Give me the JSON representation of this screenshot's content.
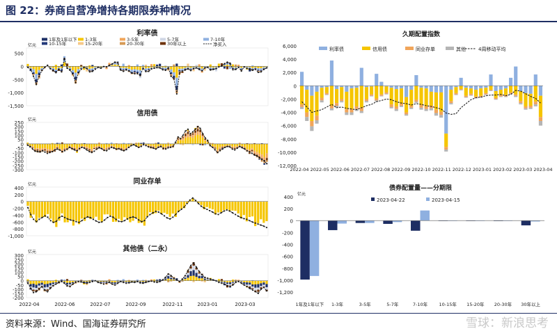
{
  "figure_title": "图 22：券商自营净增持各期限券种情况",
  "source": "资料来源：Wind、国海证券研究所",
  "watermark": "雪球：新浪思考",
  "colors": {
    "b1": "#1e3066",
    "b2": "#f5c500",
    "b3": "#f1a55a",
    "b4": "#cfd6e4",
    "b5": "#8fb0e0",
    "b6": "#233a7a",
    "b7": "#f6c98a",
    "b8": "#d69a55",
    "b9": "#6e3208",
    "dark": "#1e2e63"
  },
  "chart_data": [
    {
      "type": "bar",
      "title": "利率债",
      "unit": "亿元",
      "legend": [
        "1年及1年以下",
        "1-3年",
        "3-5年",
        "5-7年",
        "7-10年",
        "10-15年",
        "15-20年",
        "20-30年",
        "30年以上",
        "净买入"
      ],
      "y_ticks": [
        -1500,
        -1000,
        -500,
        0,
        500
      ],
      "ylim": [
        -1500,
        700
      ],
      "net": [
        -40,
        -120,
        -380,
        -690,
        -380,
        -160,
        -40,
        40,
        -90,
        -160,
        -240,
        -110,
        -210,
        300,
        -70,
        -150,
        -290,
        -620,
        -240,
        -110,
        -40,
        -80,
        -210,
        -190,
        -110,
        -40,
        -70,
        -10,
        -20,
        40,
        90,
        160,
        150,
        -140,
        -190,
        -140,
        -180,
        -250,
        -280,
        -280,
        -350,
        -80,
        -200,
        -190,
        -100,
        -70,
        -50,
        -60,
        -130,
        -150,
        -60,
        -380,
        -480,
        -1050,
        -250,
        -180,
        -140,
        -100,
        -160,
        -90,
        -60,
        -120,
        -170,
        -60,
        -40,
        -140,
        -120,
        -90,
        -20,
        10,
        100,
        160,
        120,
        -130,
        -120,
        -40,
        -180,
        -20,
        -80,
        -120,
        -150,
        -110,
        -230,
        -210,
        -120,
        -60
      ]
    },
    {
      "type": "bar",
      "title": "信用债",
      "unit": "亿元",
      "y_ticks": [
        -300,
        -250,
        -200,
        -150,
        -100,
        -50,
        0,
        50,
        100,
        150,
        200,
        250
      ],
      "ylim": [
        -300,
        250
      ],
      "net": [
        -15,
        -30,
        -60,
        -85,
        -90,
        -95,
        -80,
        -95,
        -110,
        -100,
        -90,
        -70,
        -60,
        -70,
        -90,
        -80,
        -60,
        -40,
        -55,
        -70,
        -80,
        -55,
        -40,
        -50,
        -70,
        -90,
        -100,
        -85,
        -60,
        -45,
        -55,
        -75,
        -80,
        -60,
        -40,
        -50,
        -60,
        -55,
        -70,
        -80,
        -65,
        -40,
        -20,
        -10,
        -25,
        -40,
        -30,
        -10,
        -20,
        -35,
        -40,
        -50,
        -60,
        -40,
        -30,
        -50,
        -60,
        -45,
        -40,
        -30,
        20,
        80,
        60,
        100,
        150,
        170,
        120,
        140,
        170,
        200,
        180,
        120,
        70,
        40,
        -20,
        -40,
        -70,
        -100,
        -80,
        -60,
        -40,
        -30,
        -35,
        -60,
        -70,
        -50,
        -30,
        -45,
        -60,
        -80,
        -95,
        -110,
        -130,
        -140,
        -160,
        -180,
        -200,
        -230
      ]
    },
    {
      "type": "bar",
      "title": "同业存单",
      "unit": "亿元",
      "y_ticks": [
        -1000,
        -800,
        -600,
        -400,
        -200,
        0,
        200,
        400
      ],
      "ylim": [
        -1000,
        420
      ],
      "net": [
        -180,
        -380,
        -520,
        -590,
        -520,
        -470,
        -420,
        -460,
        -560,
        -610,
        -580,
        -470,
        -430,
        -470,
        -510,
        -540,
        -560,
        -590,
        -610,
        -560,
        -490,
        -450,
        -470,
        -520,
        -570,
        -610,
        -600,
        -540,
        -470,
        -430,
        -460,
        -520,
        -580,
        -590,
        -560,
        -510,
        -470,
        -450,
        -480,
        -540,
        -590,
        -560,
        -450,
        -380,
        -330,
        -290,
        -310,
        -360,
        -420,
        -480,
        -510,
        -460,
        -380,
        -290,
        -230,
        -160,
        -60,
        40,
        100,
        30,
        -60,
        -140,
        -190,
        -230,
        -270,
        -310,
        -360,
        -380,
        -330,
        -280,
        -250,
        -280,
        -330,
        -380,
        -430,
        -470,
        -500,
        -520,
        -560,
        -600,
        -630,
        -660,
        -690,
        -720,
        -760
      ]
    },
    {
      "type": "bar",
      "title": "其他债（二永）",
      "unit": "亿元",
      "y_ticks": [
        -200,
        -150,
        -100,
        -50,
        0,
        50,
        100,
        150,
        200,
        250,
        300
      ],
      "ylim": [
        -200,
        310
      ],
      "x_ticks": [
        "2022-04",
        "2022-06",
        "2022-07",
        "2022-09",
        "2022-11",
        "2023-01",
        "2023-03"
      ],
      "net": [
        -30,
        -90,
        -140,
        -130,
        -100,
        -70,
        -110,
        -130,
        -90,
        -60,
        -40,
        -20,
        -10,
        -30,
        -60,
        -70,
        -40,
        -20,
        -10,
        -15,
        -25,
        -30,
        -20,
        -10,
        0,
        -20,
        -30,
        -40,
        -30,
        -20,
        -40,
        -50,
        -30,
        -10,
        -20,
        -30,
        -25,
        -15,
        -20,
        -10,
        -25,
        -30,
        -20,
        -10,
        -5,
        -15,
        -20,
        -10,
        10,
        40,
        80,
        60,
        30,
        10,
        -10,
        20,
        60,
        120,
        180,
        210,
        160,
        110,
        70,
        40,
        30,
        20,
        10,
        0,
        -20,
        -30,
        -40,
        -60,
        -70,
        -50,
        -20,
        -10,
        -30,
        -50,
        -70,
        -90,
        -110,
        -130,
        -150,
        -100,
        -80,
        -120
      ]
    },
    {
      "type": "bar",
      "title": "久期配置指数",
      "legend": [
        "利率债",
        "信用债",
        "同业存单",
        "其他",
        "4周移动平均"
      ],
      "y_ticks": [
        -12000,
        -10000,
        -8000,
        -6000,
        -4000,
        -2000,
        0,
        2000,
        4000,
        6000
      ],
      "ylim": [
        -12000,
        6000
      ],
      "x_ticks": [
        "2022-04",
        "2022-05",
        "2022-06",
        "2022-07",
        "2022-08",
        "2022-09",
        "2022-10",
        "2022-11",
        "2022-12",
        "2023-01",
        "2023-02",
        "2023-03",
        "2023-04"
      ],
      "weeks": [
        [
          2100,
          -2800,
          -400,
          -300
        ],
        [
          -600,
          -3400,
          -700,
          -600
        ],
        [
          -1500,
          -3800,
          -800,
          -700
        ],
        [
          -900,
          -3600,
          -700,
          -500
        ],
        [
          -300,
          -1500,
          -400,
          -300
        ],
        [
          -200,
          -900,
          -200,
          -100
        ],
        [
          3800,
          -3000,
          -400,
          -300
        ],
        [
          -500,
          -2100,
          -400,
          -300
        ],
        [
          -200,
          -1800,
          -300,
          -200
        ],
        [
          -900,
          -2600,
          -500,
          -400
        ],
        [
          -400,
          -3100,
          -500,
          -400
        ],
        [
          -300,
          -2800,
          -400,
          -300
        ],
        [
          2700,
          -3300,
          -500,
          -300
        ],
        [
          -200,
          -1800,
          -300,
          -200
        ],
        [
          -100,
          -1200,
          -200,
          -100
        ],
        [
          1800,
          -1900,
          -300,
          -200
        ],
        [
          600,
          -1300,
          -200,
          -100
        ],
        [
          -100,
          -900,
          -200,
          -100
        ],
        [
          -300,
          -2500,
          -400,
          -200
        ],
        [
          -500,
          -2600,
          -400,
          -300
        ],
        [
          -400,
          -2300,
          -300,
          -200
        ],
        [
          -1700,
          -2300,
          -300,
          -200
        ],
        [
          -600,
          -2400,
          -300,
          -200
        ],
        [
          1600,
          -2100,
          -300,
          -200
        ],
        [
          -300,
          -2600,
          -400,
          -300
        ],
        [
          -400,
          -2700,
          -400,
          -300
        ],
        [
          -900,
          -2100,
          -400,
          -300
        ],
        [
          -1000,
          -2600,
          -500,
          -400
        ],
        [
          -1000,
          -2900,
          -500,
          -400
        ],
        [
          -7200,
          -2000,
          -400,
          -300
        ],
        [
          -600,
          -1700,
          -300,
          -200
        ],
        [
          -200,
          -900,
          -200,
          -100
        ],
        [
          1200,
          -500,
          -100,
          -100
        ],
        [
          -300,
          -1200,
          -200,
          -100
        ],
        [
          -400,
          -800,
          -200,
          -100
        ],
        [
          -600,
          -1000,
          -200,
          -100
        ],
        [
          -400,
          -1100,
          -200,
          -100
        ],
        [
          -300,
          -800,
          -200,
          -100
        ],
        [
          1700,
          -600,
          -100,
          -100
        ],
        [
          -800,
          -1000,
          -200,
          -100
        ],
        [
          -600,
          -800,
          -200,
          -100
        ],
        [
          -400,
          -1000,
          -200,
          -100
        ],
        [
          1200,
          -1000,
          -200,
          -100
        ],
        [
          2900,
          -1300,
          -200,
          -200
        ],
        [
          -800,
          -1500,
          -300,
          -200
        ],
        [
          -1100,
          -2000,
          -300,
          -200
        ],
        [
          -1200,
          -1800,
          -300,
          -200
        ],
        [
          1700,
          -2400,
          -400,
          -300
        ],
        [
          -1500,
          -3200,
          -600,
          -700
        ]
      ],
      "ma": [
        -2400,
        -3200,
        -4000,
        -3800,
        -3600,
        -3200,
        -2800,
        -3300,
        -3200,
        -3400,
        -3500,
        -3600,
        -3300,
        -3000,
        -2800,
        -2400,
        -2200,
        -2000,
        -2100,
        -2400,
        -2600,
        -2700,
        -2900,
        -2700,
        -2800,
        -3000,
        -3100,
        -3300,
        -3500,
        -4100,
        -4300,
        -4200,
        -3300,
        -2700,
        -2100,
        -1800,
        -1700,
        -1500,
        -1400,
        -1400,
        -1300,
        -1500,
        -1300,
        -700,
        -800,
        -1200,
        -1600,
        -1900,
        -2600
      ]
    },
    {
      "type": "bar",
      "title": "债券配置量——分期限",
      "unit": "亿元",
      "categories": [
        "1年及1年以下",
        "1-3年",
        "3-5年",
        "5-7年",
        "7-10年",
        "10-15年",
        "15-20年",
        "20-30年",
        "30年以上"
      ],
      "series": [
        {
          "name": "2023-04-22",
          "values": [
            -990,
            -160,
            -40,
            -55,
            -170,
            -5,
            -3,
            -8,
            -80
          ]
        },
        {
          "name": "2023-04-15",
          "values": [
            -930,
            -50,
            -40,
            -25,
            170,
            -3,
            -2,
            -5,
            -15
          ]
        }
      ],
      "y_ticks": [
        -1200,
        -1000,
        -800,
        -600,
        -400,
        -200,
        0,
        200,
        400
      ],
      "ylim": [
        -1200,
        400
      ]
    }
  ]
}
